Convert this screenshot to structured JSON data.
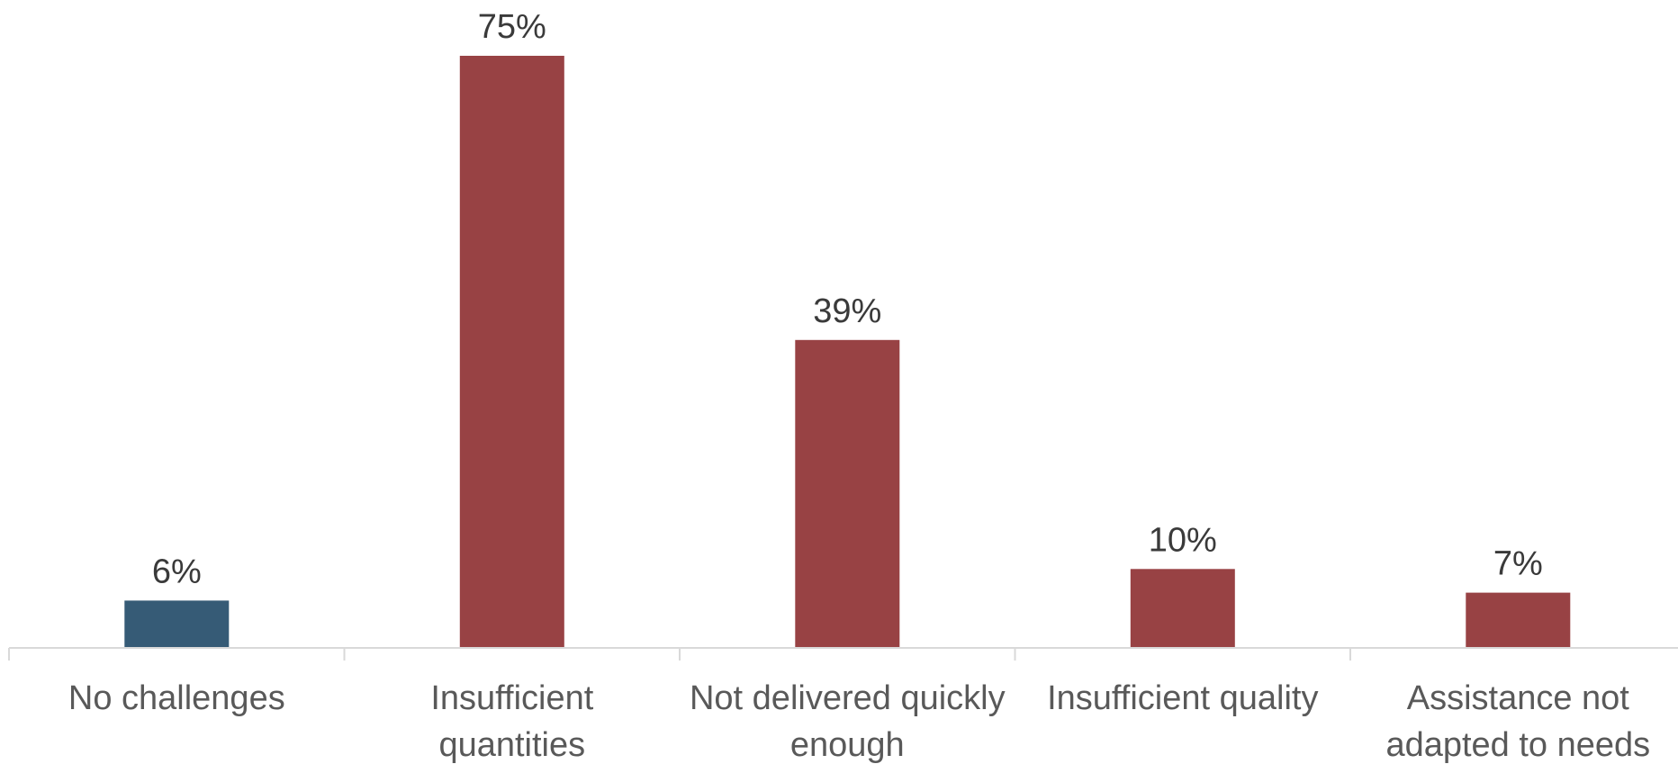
{
  "chart_data": {
    "type": "bar",
    "categories": [
      [
        "No challenges"
      ],
      [
        "Insufficient",
        "quantities"
      ],
      [
        "Not delivered quickly",
        "enough"
      ],
      [
        "Insufficient quality"
      ],
      [
        "Assistance not",
        "adapted to needs"
      ]
    ],
    "values": [
      6,
      75,
      39,
      10,
      7
    ],
    "value_labels": [
      "6%",
      "75%",
      "39%",
      "10%",
      "7%"
    ],
    "bar_colors": [
      "#365b76",
      "#984244",
      "#984244",
      "#984244",
      "#984244"
    ],
    "axis_color": "#d9d9d9",
    "title": "",
    "xlabel": "",
    "ylabel": "",
    "ylim": [
      0,
      75
    ],
    "grid": false,
    "legend": "none"
  }
}
